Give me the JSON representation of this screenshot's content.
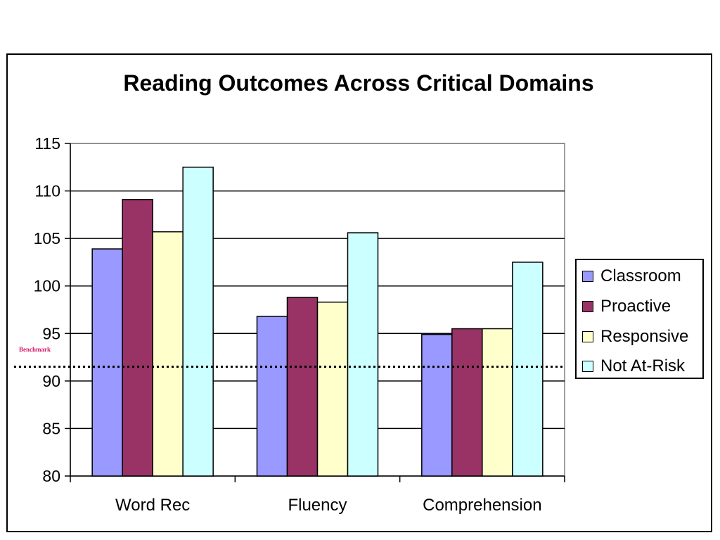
{
  "chart_data": {
    "type": "bar",
    "title": "Reading Outcomes Across Critical Domains",
    "xlabel": "",
    "ylabel": "",
    "categories": [
      "Word Rec",
      "Fluency",
      "Comprehension"
    ],
    "series": [
      {
        "name": "Classroom",
        "values": [
          103.9,
          96.8,
          94.9
        ],
        "color": "#9999ff"
      },
      {
        "name": "Proactive",
        "values": [
          109.1,
          98.8,
          95.5
        ],
        "color": "#993366"
      },
      {
        "name": "Responsive",
        "values": [
          105.7,
          98.3,
          95.5
        ],
        "color": "#ffffcc"
      },
      {
        "name": "Not At-Risk",
        "values": [
          112.5,
          105.6,
          102.5
        ],
        "color": "#ccffff"
      }
    ],
    "ylim": [
      80,
      115
    ],
    "yticks": [
      80,
      85,
      90,
      95,
      100,
      105,
      110,
      115
    ],
    "grid": true,
    "legend_position": "right",
    "benchmark": {
      "label": "Benchmark",
      "value": 91.5,
      "style": "dotted",
      "color": "#d6196b"
    }
  }
}
